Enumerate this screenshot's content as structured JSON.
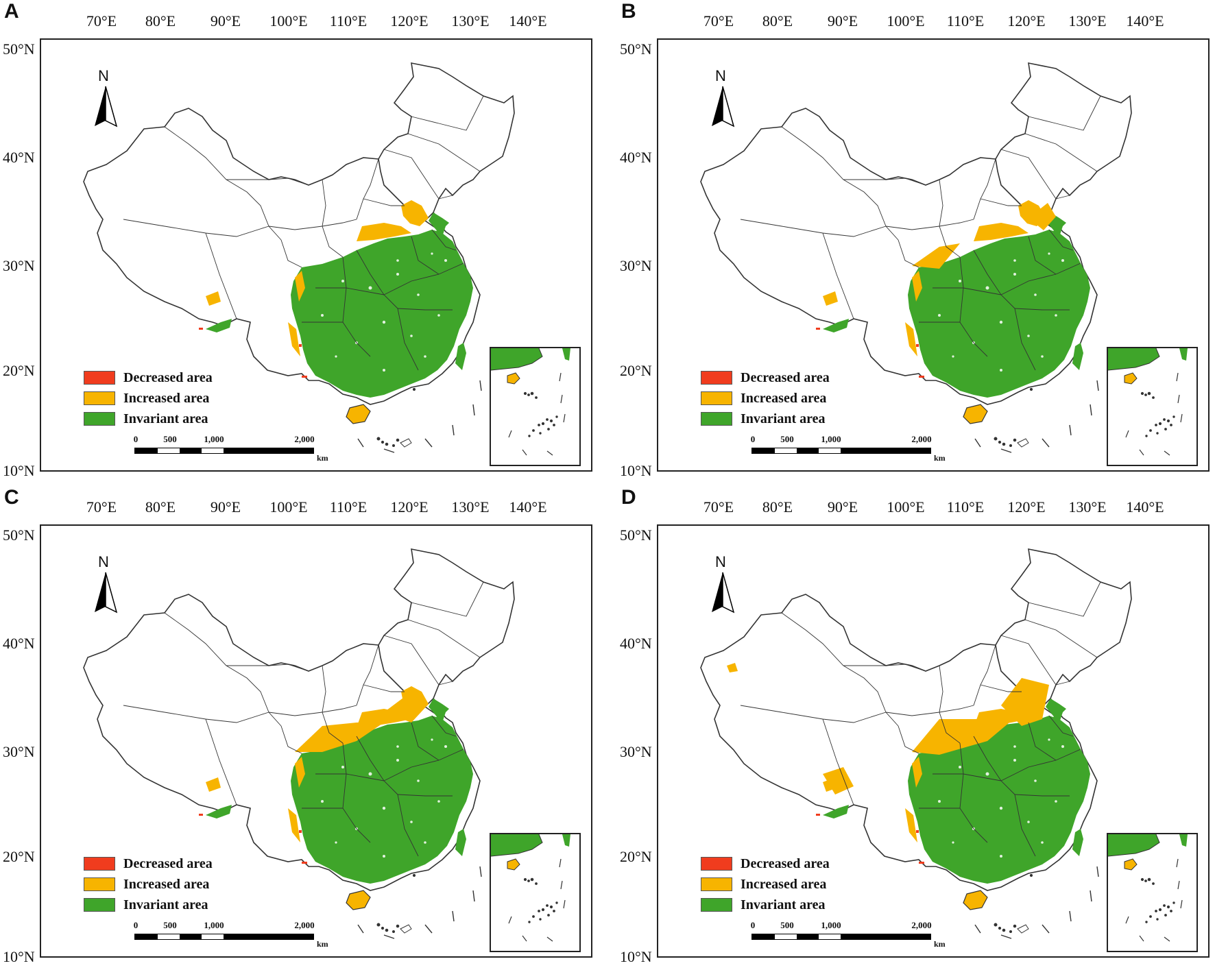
{
  "figure": {
    "lon_labels": [
      "70°E",
      "80°E",
      "90°E",
      "100°E",
      "110°E",
      "120°E",
      "130°E",
      "140°E"
    ],
    "lat_labels": [
      "50°N",
      "40°N",
      "30°N",
      "20°N",
      "10°N"
    ],
    "north_label": "N",
    "legend": [
      {
        "label": "Decreased area",
        "color": "#f03c1e"
      },
      {
        "label": "Increased area",
        "color": "#f7b400"
      },
      {
        "label": "Invariant area",
        "color": "#3fa52a"
      }
    ],
    "scale": {
      "ticks": [
        "0",
        "500",
        "1,000",
        "2,000"
      ],
      "unit": "km"
    },
    "boundary_color": "#333333",
    "panels": [
      {
        "letter": "A"
      },
      {
        "letter": "B"
      },
      {
        "letter": "C"
      },
      {
        "letter": "D"
      }
    ]
  }
}
